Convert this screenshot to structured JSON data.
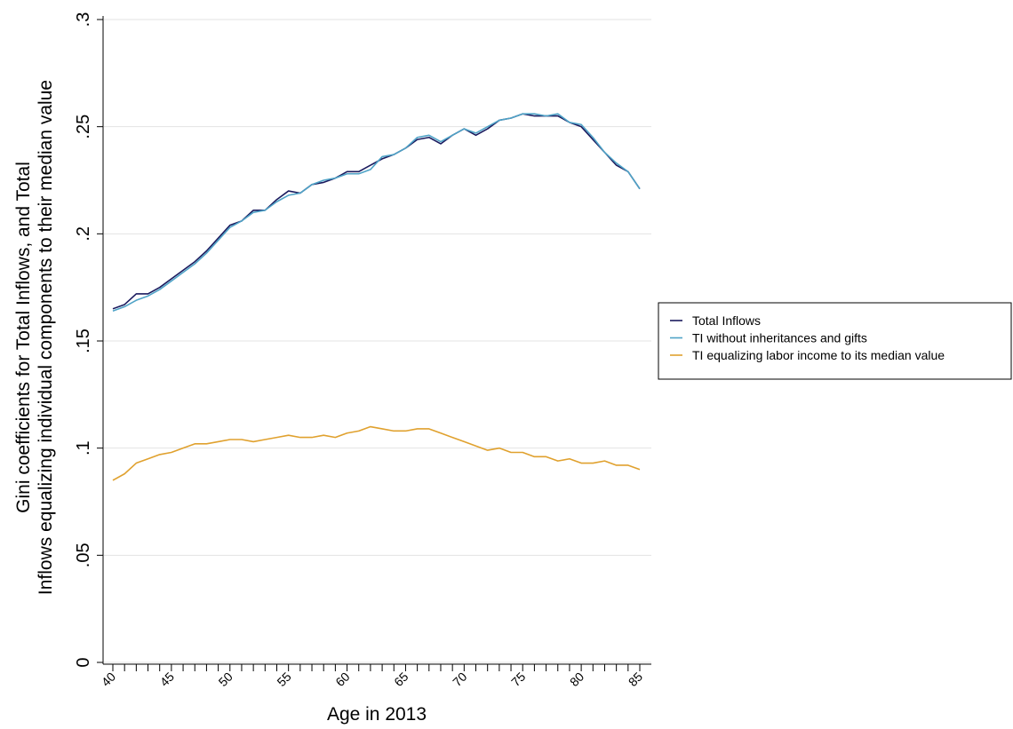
{
  "chart_data": {
    "type": "line",
    "xlabel": "Age in 2013",
    "ylabel_lines": [
      "Gini coefficients for Total Inflows, and Total",
      "Inflows equalizing individual components to their median value"
    ],
    "xlim": [
      40,
      85
    ],
    "ylim": [
      0,
      0.3
    ],
    "xticks": [
      40,
      45,
      50,
      55,
      60,
      65,
      70,
      75,
      80,
      85
    ],
    "xtick_labels": [
      "40",
      "45",
      "50",
      "55",
      "60",
      "65",
      "70",
      "75",
      "80",
      "85"
    ],
    "yticks": [
      0,
      0.05,
      0.1,
      0.15,
      0.2,
      0.25,
      0.3
    ],
    "ytick_labels": [
      "0",
      ".05",
      ".1",
      ".15",
      ".2",
      ".25",
      ".3"
    ],
    "grid": true,
    "legend_position": "right",
    "x": [
      40,
      41,
      42,
      43,
      44,
      45,
      46,
      47,
      48,
      49,
      50,
      51,
      52,
      53,
      54,
      55,
      56,
      57,
      58,
      59,
      60,
      61,
      62,
      63,
      64,
      65,
      66,
      67,
      68,
      69,
      70,
      71,
      72,
      73,
      74,
      75,
      76,
      77,
      78,
      79,
      80,
      81,
      82,
      83,
      84,
      85
    ],
    "series": [
      {
        "name": "Total Inflows",
        "color": "#1a1a5e",
        "values": [
          0.165,
          0.167,
          0.172,
          0.172,
          0.175,
          0.179,
          0.183,
          0.187,
          0.192,
          0.198,
          0.204,
          0.206,
          0.211,
          0.211,
          0.216,
          0.22,
          0.219,
          0.223,
          0.224,
          0.226,
          0.229,
          0.229,
          0.232,
          0.235,
          0.237,
          0.24,
          0.244,
          0.245,
          0.242,
          0.246,
          0.249,
          0.246,
          0.249,
          0.253,
          0.254,
          0.256,
          0.255,
          0.255,
          0.255,
          0.252,
          0.25,
          0.244,
          0.238,
          0.232,
          0.229,
          0.221
        ]
      },
      {
        "name": "TI without inheritances and gifts",
        "color": "#4fa3c7",
        "values": [
          0.164,
          0.166,
          0.169,
          0.171,
          0.174,
          0.178,
          0.182,
          0.186,
          0.191,
          0.197,
          0.203,
          0.206,
          0.21,
          0.211,
          0.215,
          0.218,
          0.219,
          0.223,
          0.225,
          0.226,
          0.228,
          0.228,
          0.23,
          0.236,
          0.237,
          0.24,
          0.245,
          0.246,
          0.243,
          0.246,
          0.249,
          0.247,
          0.25,
          0.253,
          0.254,
          0.256,
          0.256,
          0.255,
          0.256,
          0.252,
          0.251,
          0.245,
          0.238,
          0.233,
          0.229,
          0.221
        ]
      },
      {
        "name": "TI equalizing labor income to its median value",
        "color": "#e0a12e",
        "values": [
          0.085,
          0.088,
          0.093,
          0.095,
          0.097,
          0.098,
          0.1,
          0.102,
          0.102,
          0.103,
          0.104,
          0.104,
          0.103,
          0.104,
          0.105,
          0.106,
          0.105,
          0.105,
          0.106,
          0.105,
          0.107,
          0.108,
          0.11,
          0.109,
          0.108,
          0.108,
          0.109,
          0.109,
          0.107,
          0.105,
          0.103,
          0.101,
          0.099,
          0.1,
          0.098,
          0.098,
          0.096,
          0.096,
          0.094,
          0.095,
          0.093,
          0.093,
          0.094,
          0.092,
          0.092,
          0.09
        ]
      }
    ]
  }
}
